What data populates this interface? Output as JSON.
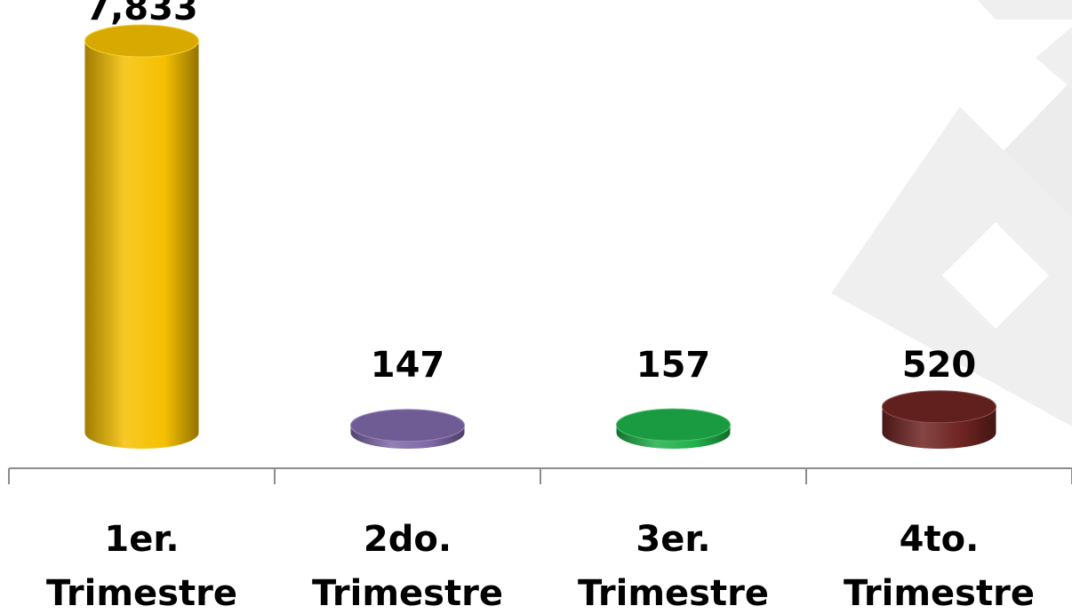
{
  "chart_data": {
    "type": "bar",
    "style": "3d-cylinder",
    "categories": [
      [
        "1er.",
        "Trimestre"
      ],
      [
        "2do.",
        "Trimestre"
      ],
      [
        "3er.",
        "Trimestre"
      ],
      [
        "4to.",
        "Trimestre"
      ]
    ],
    "values": [
      7833,
      147,
      157,
      520
    ],
    "value_labels": [
      "7,833",
      "147",
      "157",
      "520"
    ],
    "colors": [
      "#f5c000",
      "#7f68a8",
      "#1fb04a",
      "#6e2422"
    ],
    "title": "",
    "xlabel": "",
    "ylabel": "",
    "ylim": [
      0,
      7833
    ],
    "grid": false,
    "legend": "none"
  }
}
